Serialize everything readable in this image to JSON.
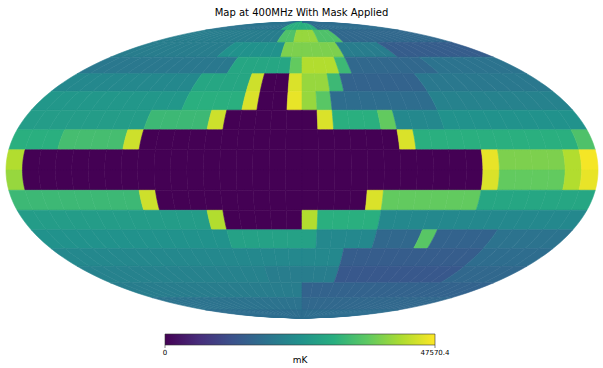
{
  "chart_data": {
    "type": "heatmap",
    "title": "Map at 400MHz With Mask Applied",
    "tick_labels": false,
    "lon_bins": [
      180,
      170,
      160,
      150,
      140,
      130,
      120,
      110,
      100,
      90,
      80,
      70,
      60,
      50,
      40,
      30,
      20,
      10,
      0,
      -10,
      -20,
      -30,
      -40,
      -50,
      -60,
      -70,
      -80,
      -90,
      -100,
      -110,
      -120,
      -130,
      -140,
      -150,
      -160,
      -170,
      -180
    ],
    "lat_bins": [
      90,
      80,
      70,
      60,
      50,
      40,
      30,
      20,
      10,
      0,
      -10,
      -20,
      -30,
      -40,
      -50,
      -60,
      -70,
      -80,
      -90
    ],
    "cells": [
      [
        18000,
        18000,
        18000,
        18000,
        18000,
        18000,
        18000,
        18000,
        18000,
        18000,
        18000,
        18000,
        18000,
        18000,
        30000,
        30000,
        30000,
        30000,
        30000,
        30000,
        30000,
        17000,
        17000,
        17000,
        17000,
        17000,
        17000,
        17000,
        17000,
        17000,
        17000,
        17000,
        17000,
        17000,
        17000,
        17000
      ],
      [
        20000,
        20000,
        20000,
        20000,
        20000,
        20000,
        20000,
        20000,
        20000,
        20000,
        20000,
        20000,
        20000,
        20000,
        20000,
        34000,
        34000,
        40000,
        40000,
        40000,
        34000,
        34000,
        34000,
        16000,
        16000,
        16000,
        16000,
        16000,
        16000,
        16000,
        16000,
        16000,
        16000,
        16000,
        16000,
        16000
      ],
      [
        20000,
        20000,
        20000,
        20000,
        20000,
        20000,
        20000,
        20000,
        20000,
        20000,
        24000,
        24000,
        24000,
        24000,
        24000,
        24000,
        38000,
        38000,
        38000,
        38000,
        38000,
        38000,
        20000,
        20000,
        20000,
        20000,
        20000,
        14000,
        14000,
        14000,
        14000,
        14000,
        14000,
        14000,
        14000,
        14000
      ],
      [
        19000,
        19000,
        19000,
        19000,
        19000,
        19000,
        19000,
        19000,
        19000,
        19000,
        19000,
        19000,
        28000,
        28000,
        28000,
        28000,
        28000,
        36000,
        42000,
        42000,
        42000,
        32000,
        16000,
        16000,
        16000,
        16000,
        16000,
        16000,
        16000,
        18000,
        18000,
        18000,
        18000,
        18000,
        18000,
        18000
      ],
      [
        22000,
        22000,
        22000,
        22000,
        22000,
        22000,
        22000,
        22000,
        22000,
        22000,
        28000,
        28000,
        28000,
        28000,
        44000,
        0,
        0,
        45000,
        40000,
        40000,
        32000,
        15000,
        15000,
        15000,
        15000,
        15000,
        15000,
        19000,
        19000,
        19000,
        19000,
        19000,
        19000,
        19000,
        19000,
        19000
      ],
      [
        25000,
        25000,
        25000,
        25000,
        25000,
        25000,
        25000,
        25000,
        25000,
        25000,
        30000,
        30000,
        30000,
        30000,
        45000,
        0,
        0,
        46000,
        40000,
        35000,
        17000,
        17000,
        17000,
        17000,
        17000,
        17000,
        17000,
        21000,
        21000,
        21000,
        21000,
        21000,
        21000,
        21000,
        21000,
        21000
      ],
      [
        26000,
        26000,
        26000,
        26000,
        26000,
        26000,
        26000,
        26000,
        32000,
        32000,
        32000,
        32000,
        44000,
        0,
        0,
        0,
        0,
        0,
        0,
        45000,
        30000,
        30000,
        30000,
        36000,
        22000,
        22000,
        22000,
        24000,
        24000,
        24000,
        24000,
        24000,
        24000,
        24000,
        24000,
        24000
      ],
      [
        30000,
        30000,
        30000,
        33000,
        33000,
        33000,
        33000,
        44000,
        0,
        0,
        0,
        0,
        0,
        0,
        0,
        0,
        0,
        0,
        0,
        0,
        0,
        0,
        0,
        0,
        45000,
        30000,
        30000,
        30000,
        30000,
        30000,
        30000,
        30000,
        30000,
        30000,
        30000,
        34000
      ],
      [
        42000,
        0,
        0,
        0,
        0,
        0,
        0,
        0,
        0,
        0,
        0,
        0,
        0,
        0,
        0,
        0,
        0,
        0,
        0,
        0,
        0,
        0,
        0,
        0,
        0,
        0,
        0,
        0,
        0,
        46000,
        38000,
        38000,
        38000,
        38000,
        42000,
        47000
      ],
      [
        40000,
        0,
        0,
        0,
        0,
        0,
        0,
        0,
        0,
        0,
        0,
        0,
        0,
        0,
        0,
        0,
        0,
        0,
        0,
        0,
        0,
        0,
        0,
        0,
        0,
        0,
        0,
        0,
        0,
        45000,
        36000,
        36000,
        36000,
        36000,
        42000,
        46000
      ],
      [
        32000,
        32000,
        32000,
        32000,
        32000,
        32000,
        32000,
        32000,
        44000,
        0,
        0,
        0,
        0,
        0,
        0,
        0,
        0,
        0,
        0,
        0,
        0,
        0,
        45000,
        36000,
        36000,
        36000,
        36000,
        36000,
        36000,
        28000,
        28000,
        28000,
        28000,
        28000,
        28000,
        28000
      ],
      [
        26000,
        26000,
        26000,
        26000,
        26000,
        26000,
        26000,
        26000,
        26000,
        26000,
        26000,
        26000,
        42000,
        0,
        0,
        0,
        0,
        0,
        42000,
        30000,
        30000,
        30000,
        30000,
        22000,
        22000,
        22000,
        22000,
        22000,
        22000,
        22000,
        22000,
        22000,
        22000,
        22000,
        22000,
        22000
      ],
      [
        24000,
        24000,
        24000,
        24000,
        24000,
        24000,
        24000,
        24000,
        24000,
        24000,
        24000,
        24000,
        24000,
        27000,
        27000,
        27000,
        27000,
        27000,
        27000,
        22000,
        22000,
        22000,
        22000,
        16000,
        16000,
        16000,
        35000,
        15000,
        15000,
        15000,
        15000,
        18000,
        18000,
        18000,
        18000,
        18000
      ],
      [
        22000,
        22000,
        22000,
        22000,
        22000,
        22000,
        22000,
        22000,
        22000,
        22000,
        22000,
        22000,
        22000,
        22000,
        22000,
        22000,
        22000,
        22000,
        22000,
        22000,
        22000,
        14000,
        14000,
        14000,
        14000,
        14000,
        14000,
        14000,
        14000,
        14000,
        14000,
        17000,
        17000,
        17000,
        17000,
        17000
      ],
      [
        21000,
        21000,
        21000,
        21000,
        21000,
        21000,
        21000,
        21000,
        21000,
        21000,
        21000,
        21000,
        21000,
        21000,
        21000,
        20000,
        20000,
        20000,
        20000,
        20000,
        20000,
        13000,
        13000,
        13000,
        13000,
        13000,
        13000,
        13000,
        13000,
        13000,
        13000,
        16000,
        16000,
        16000,
        16000,
        16000
      ],
      [
        20000,
        20000,
        20000,
        20000,
        20000,
        20000,
        20000,
        20000,
        20000,
        20000,
        20000,
        20000,
        20000,
        20000,
        20000,
        20000,
        20000,
        20000,
        15000,
        15000,
        15000,
        15000,
        15000,
        15000,
        15000,
        15000,
        15000,
        15000,
        15000,
        15000,
        15000,
        15000,
        15000,
        15000,
        15000,
        15000
      ],
      [
        18000,
        18000,
        18000,
        18000,
        18000,
        18000,
        18000,
        18000,
        18000,
        18000,
        18000,
        18000,
        18000,
        18000,
        18000,
        18000,
        18000,
        18000,
        16000,
        16000,
        16000,
        16000,
        16000,
        16000,
        16000,
        16000,
        16000,
        16000,
        16000,
        16000,
        16000,
        16000,
        16000,
        16000,
        16000,
        16000
      ],
      [
        17000,
        17000,
        17000,
        17000,
        17000,
        17000,
        17000,
        17000,
        17000,
        17000,
        17000,
        17000,
        17000,
        17000,
        17000,
        17000,
        17000,
        17000,
        17000,
        17000,
        17000,
        17000,
        17000,
        17000,
        17000,
        17000,
        17000,
        17000,
        17000,
        17000,
        17000,
        17000,
        17000,
        17000,
        17000,
        17000
      ]
    ],
    "colorbar": {
      "range": [
        0,
        47570.4
      ],
      "ticks": [
        0,
        47570.4
      ],
      "label": "mK"
    }
  }
}
